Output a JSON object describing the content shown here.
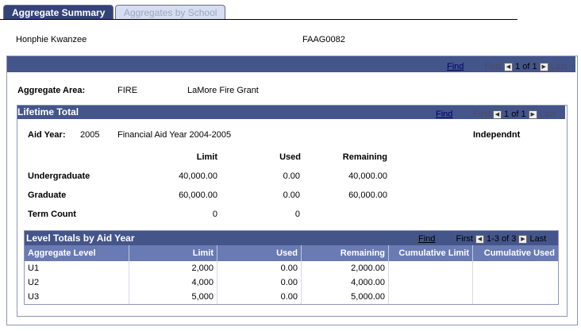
{
  "tabs": [
    {
      "label": "Aggregate Summary"
    },
    {
      "label": "Aggregates by School"
    }
  ],
  "student": {
    "name": "Honphie Kwanzee",
    "id": "FAAG0082"
  },
  "outer_nav": {
    "find": "Find",
    "first": "First",
    "position": "1 of 1",
    "last": "Last"
  },
  "aggregate_area": {
    "label": "Aggregate Area:",
    "code": "FIRE",
    "description": "LaMore Fire Grant"
  },
  "lifetime": {
    "title": "Lifetime Total",
    "nav": {
      "find": "Find",
      "first": "First",
      "position": "1 of 1",
      "last": "Last"
    },
    "aid_year_label": "Aid Year:",
    "aid_year": "2005",
    "aid_year_desc": "Financial Aid Year 2004-2005",
    "dependency": "Independnt",
    "col_limit": "Limit",
    "col_used": "Used",
    "col_remaining": "Remaining",
    "rows": [
      {
        "label": "Undergraduate",
        "limit": "40,000.00",
        "used": "0.00",
        "remaining": "40,000.00"
      },
      {
        "label": "Graduate",
        "limit": "60,000.00",
        "used": "0.00",
        "remaining": "60,000.00"
      },
      {
        "label": "Term Count",
        "limit": "0",
        "used": "0",
        "remaining": ""
      }
    ]
  },
  "level_totals": {
    "title": "Level Totals by Aid Year",
    "nav": {
      "find": "Find",
      "first": "First",
      "position": "1-3 of 3",
      "last": "Last"
    },
    "headers": [
      "Aggregate Level",
      "Limit",
      "Used",
      "Remaining",
      "Cumulative Limit",
      "Cumulative Used"
    ],
    "rows": [
      {
        "level": "U1",
        "limit": "2,000",
        "used": "0.00",
        "remaining": "2,000.00",
        "cum_limit": "",
        "cum_used": ""
      },
      {
        "level": "U2",
        "limit": "4,000",
        "used": "0.00",
        "remaining": "4,000.00",
        "cum_limit": "",
        "cum_used": ""
      },
      {
        "level": "U3",
        "limit": "5,000",
        "used": "0.00",
        "remaining": "5,000.00",
        "cum_limit": "",
        "cum_used": ""
      }
    ]
  }
}
